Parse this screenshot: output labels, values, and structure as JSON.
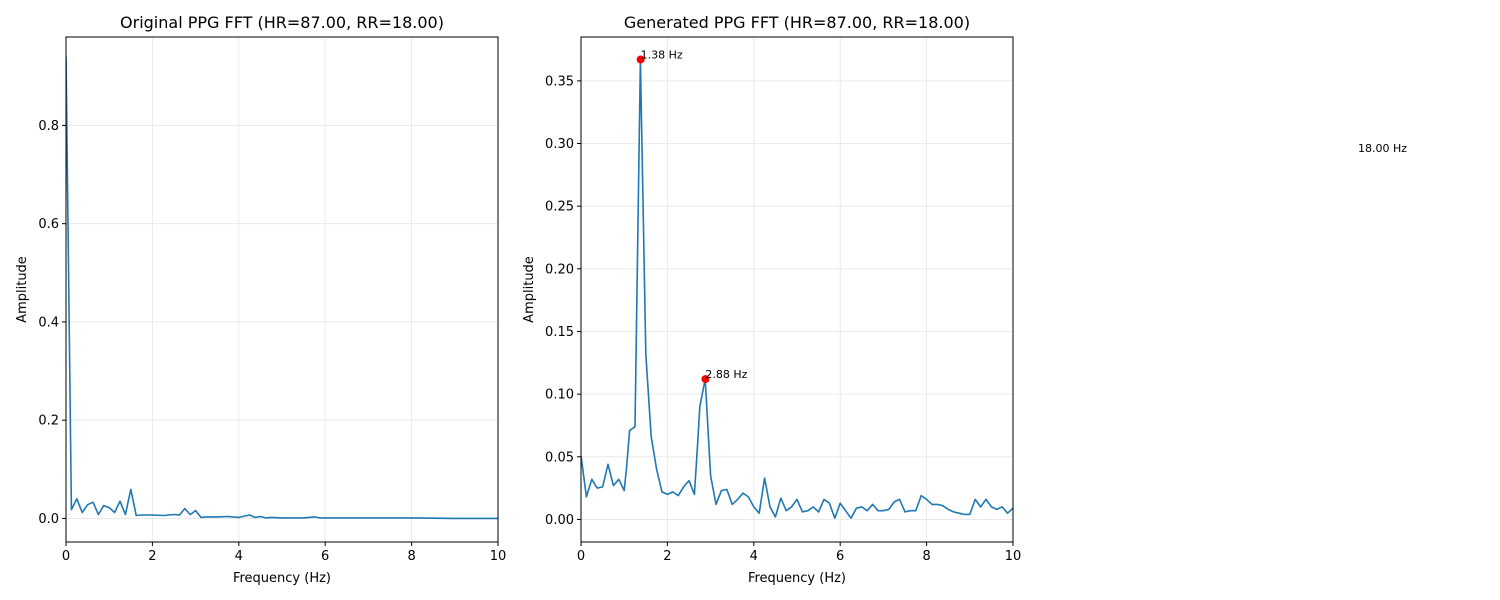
{
  "chart_data": [
    {
      "type": "line",
      "title": "Original PPG FFT (HR=87.00, RR=18.00)",
      "xlabel": "Frequency (Hz)",
      "ylabel": "Amplitude",
      "xlim": [
        0,
        10
      ],
      "ylim": [
        -0.048,
        0.98
      ],
      "xticks": [
        0,
        2,
        4,
        6,
        8,
        10
      ],
      "yticks": [
        0.0,
        0.2,
        0.4,
        0.6,
        0.8
      ],
      "ytick_labels": [
        "0.0",
        "0.2",
        "0.4",
        "0.6",
        "0.8"
      ],
      "grid": true,
      "color": "#1f77b4",
      "series": [
        {
          "x": [
            0.0,
            0.125,
            0.25,
            0.375,
            0.5,
            0.625,
            0.75,
            0.875,
            1.0,
            1.125,
            1.25,
            1.375,
            1.5,
            1.625,
            1.75,
            2.0,
            2.25,
            2.5,
            2.625,
            2.75,
            2.875,
            3.0,
            3.125,
            3.25,
            3.5,
            3.75,
            4.0,
            4.25,
            4.375,
            4.5,
            4.625,
            4.75,
            5.0,
            5.5,
            5.75,
            5.875,
            6.25,
            7.0,
            8.0,
            9.0,
            10.0
          ],
          "y": [
            0.94,
            0.018,
            0.04,
            0.012,
            0.028,
            0.033,
            0.008,
            0.026,
            0.022,
            0.012,
            0.035,
            0.008,
            0.059,
            0.006,
            0.007,
            0.007,
            0.006,
            0.008,
            0.007,
            0.02,
            0.008,
            0.016,
            0.002,
            0.003,
            0.003,
            0.004,
            0.002,
            0.007,
            0.002,
            0.004,
            0.001,
            0.002,
            0.001,
            0.001,
            0.003,
            0.001,
            0.001,
            0.001,
            0.001,
            0.0,
            0.0
          ]
        }
      ]
    },
    {
      "type": "line",
      "title": "Generated PPG FFT (HR=87.00, RR=18.00)",
      "xlabel": "Frequency (Hz)",
      "ylabel": "Amplitude",
      "xlim": [
        0,
        10
      ],
      "ylim": [
        -0.018,
        0.385
      ],
      "xticks": [
        0,
        2,
        4,
        6,
        8,
        10
      ],
      "yticks": [
        0.0,
        0.05,
        0.1,
        0.15,
        0.2,
        0.25,
        0.3,
        0.35
      ],
      "ytick_labels": [
        "0.00",
        "0.05",
        "0.10",
        "0.15",
        "0.20",
        "0.25",
        "0.30",
        "0.35"
      ],
      "grid": true,
      "color": "#1f77b4",
      "series": [
        {
          "x": [
            0.0,
            0.125,
            0.25,
            0.375,
            0.5,
            0.625,
            0.75,
            0.875,
            1.0,
            1.05,
            1.125,
            1.25,
            1.375,
            1.5,
            1.625,
            1.75,
            1.875,
            2.0,
            2.125,
            2.25,
            2.375,
            2.5,
            2.625,
            2.7,
            2.75,
            2.875,
            3.0,
            3.125,
            3.25,
            3.375,
            3.5,
            3.625,
            3.75,
            3.875,
            4.0,
            4.125,
            4.25,
            4.375,
            4.5,
            4.625,
            4.75,
            4.875,
            5.0,
            5.125,
            5.25,
            5.375,
            5.5,
            5.625,
            5.75,
            5.875,
            6.0,
            6.125,
            6.25,
            6.375,
            6.5,
            6.625,
            6.75,
            6.875,
            7.0,
            7.125,
            7.25,
            7.375,
            7.5,
            7.625,
            7.75,
            7.875,
            8.0,
            8.125,
            8.25,
            8.375,
            8.5,
            8.625,
            8.75,
            8.875,
            9.0,
            9.125,
            9.25,
            9.375,
            9.5,
            9.625,
            9.75,
            9.875,
            10.0
          ],
          "y": [
            0.051,
            0.018,
            0.032,
            0.025,
            0.026,
            0.044,
            0.027,
            0.032,
            0.023,
            0.04,
            0.071,
            0.074,
            0.367,
            0.132,
            0.066,
            0.04,
            0.022,
            0.02,
            0.022,
            0.019,
            0.026,
            0.031,
            0.02,
            0.06,
            0.09,
            0.112,
            0.035,
            0.012,
            0.023,
            0.024,
            0.012,
            0.016,
            0.021,
            0.018,
            0.01,
            0.005,
            0.033,
            0.01,
            0.002,
            0.017,
            0.007,
            0.01,
            0.016,
            0.006,
            0.007,
            0.01,
            0.006,
            0.016,
            0.013,
            0.001,
            0.013,
            0.007,
            0.001,
            0.009,
            0.01,
            0.007,
            0.012,
            0.007,
            0.007,
            0.008,
            0.014,
            0.016,
            0.006,
            0.007,
            0.007,
            0.019,
            0.016,
            0.012,
            0.012,
            0.011,
            0.008,
            0.006,
            0.005,
            0.004,
            0.004,
            0.016,
            0.01,
            0.016,
            0.01,
            0.008,
            0.01,
            0.005,
            0.009
          ]
        }
      ],
      "peaks": [
        {
          "x": 1.38,
          "y": 0.367,
          "label": "1.38 Hz"
        },
        {
          "x": 2.88,
          "y": 0.112,
          "label": "2.88 Hz"
        }
      ],
      "peak_color": "#ff0000"
    }
  ],
  "side_annotation": "18.00 Hz"
}
